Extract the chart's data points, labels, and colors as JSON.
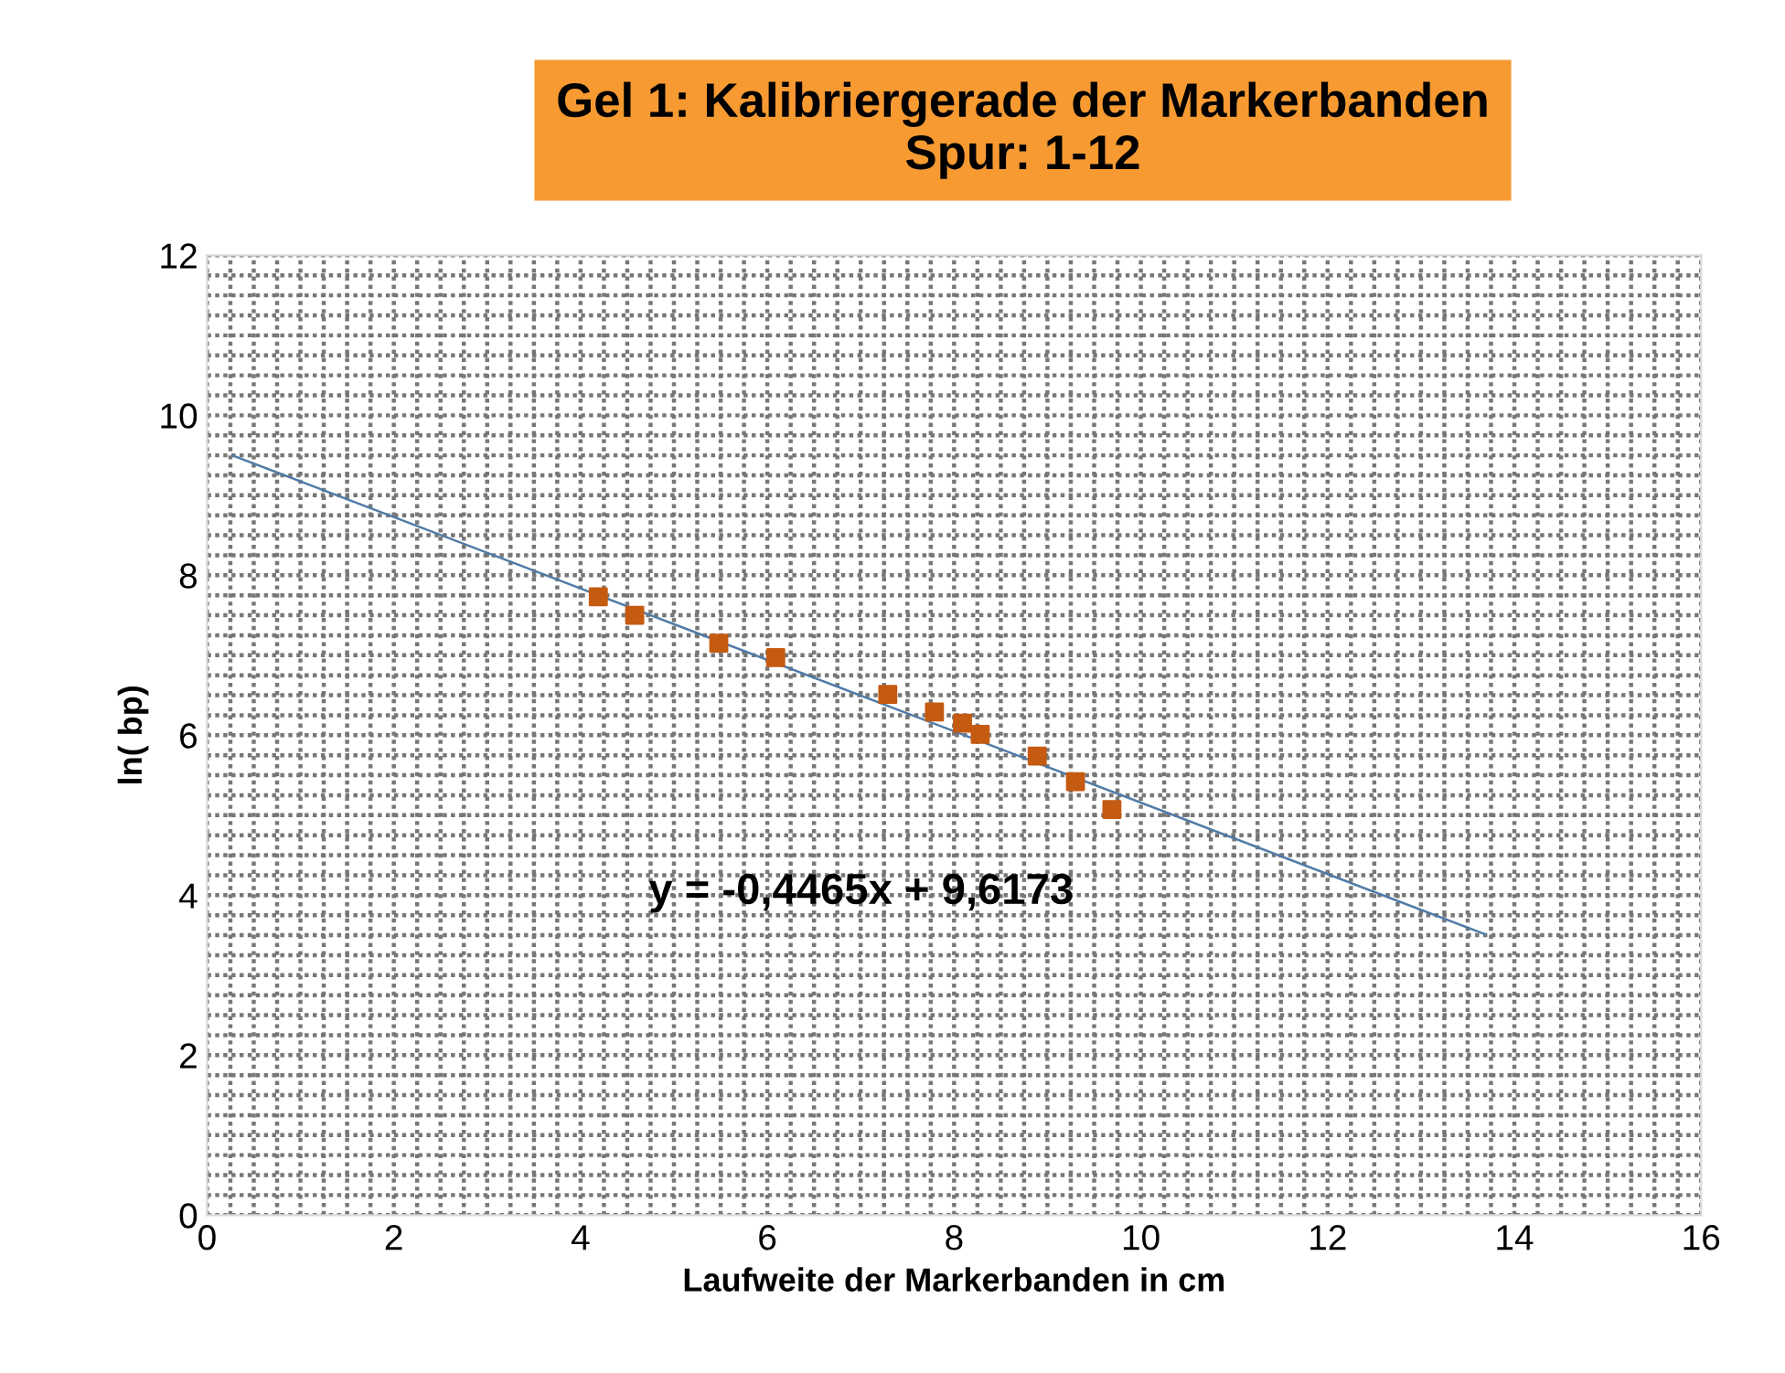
{
  "chart_data": {
    "type": "scatter",
    "title": "Gel 1: Kalibriergerade der Markerbanden\nSpur: 1-12",
    "xlabel": "Laufweite der Markerbanden in cm",
    "ylabel": "ln( bp)",
    "series": [
      {
        "color": "#c55a11",
        "marker": "square",
        "x": [
          4.19,
          4.58,
          5.48,
          6.09,
          7.29,
          7.79,
          8.09,
          8.28,
          8.89,
          9.3,
          9.69
        ],
        "values": [
          7.73,
          7.5,
          7.15,
          6.97,
          6.51,
          6.29,
          6.15,
          6.01,
          5.74,
          5.42,
          5.07
        ]
      },
      {
        "type": "line",
        "color": "#4f7ba7",
        "marker": "none",
        "x": [
          0.27,
          13.69
        ],
        "values": [
          9.5,
          3.51
        ]
      }
    ],
    "annotations": [
      "y = -0,4465x + 9,6173"
    ],
    "xlim": [
      0,
      16
    ],
    "xticks": [
      0,
      2,
      4,
      6,
      8,
      10,
      12,
      14,
      16
    ],
    "ylim": [
      0,
      12
    ],
    "yticks": [
      0,
      2,
      4,
      6,
      8,
      10,
      12
    ],
    "grid": true,
    "legend": false
  }
}
